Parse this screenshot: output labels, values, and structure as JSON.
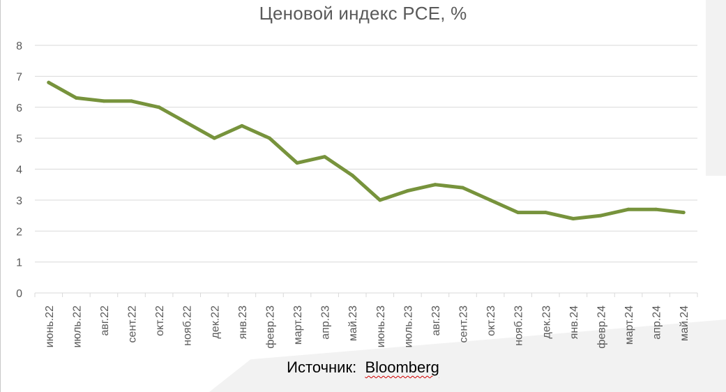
{
  "chart_data": {
    "type": "line",
    "title": "Ценовой индекс PCE, %",
    "xlabel": "",
    "ylabel": "",
    "ylim": [
      0,
      8
    ],
    "y_ticks": [
      "0",
      "1",
      "2",
      "3",
      "4",
      "5",
      "6",
      "7",
      "8"
    ],
    "grid": "horizontal",
    "legend": "none",
    "categories": [
      "июнь.22",
      "июль.22",
      "авг.22",
      "сент.22",
      "окт.22",
      "нояб.22",
      "дек.22",
      "янв.23",
      "февр.23",
      "март.23",
      "апр.23",
      "май.23",
      "июнь.23",
      "июль.23",
      "авг.23",
      "сент.23",
      "окт.23",
      "нояб.23",
      "дек.23",
      "янв.24",
      "февр.24",
      "март.24",
      "апр.24",
      "май.24"
    ],
    "series": [
      {
        "values": [
          6.8,
          6.3,
          6.2,
          6.2,
          6.0,
          5.5,
          5.0,
          5.4,
          5.0,
          4.2,
          4.4,
          3.8,
          3.0,
          3.3,
          3.5,
          3.4,
          3.0,
          2.6,
          2.6,
          2.4,
          2.5,
          2.7,
          2.7,
          2.6
        ],
        "color": "#77933c"
      }
    ]
  },
  "source": {
    "label": "Источник:",
    "name": "Bloomberg"
  },
  "colors": {
    "line": "#77933c",
    "grid": "#d9d9d9",
    "axis_text": "#595959"
  }
}
